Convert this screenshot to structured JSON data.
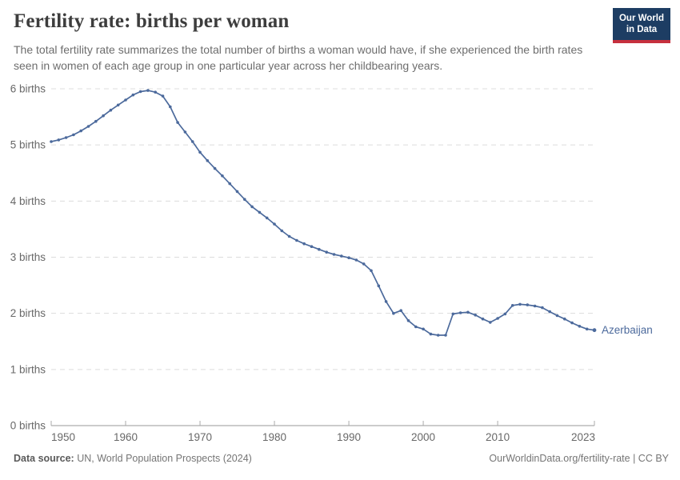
{
  "header": {
    "title": "Fertility rate: births per woman",
    "subtitle": "The total fertility rate summarizes the total number of births a woman would have, if she experienced the birth rates seen in women of each age group in one particular year across her childbearing years.",
    "logo": {
      "line1": "Our World",
      "line2": "in Data",
      "bg_color": "#1d3d63",
      "accent_color": "#c6303e"
    }
  },
  "footer": {
    "datasource_label": "Data source:",
    "datasource_text": " UN, World Population Prospects (2024)",
    "attribution": "OurWorldinData.org/fertility-rate | CC BY"
  },
  "chart_data": {
    "type": "line",
    "title": "Fertility rate: births per woman",
    "xlabel": "",
    "ylabel": "",
    "ylim": [
      0,
      6
    ],
    "xlim": [
      1950,
      2023
    ],
    "grid": "horizontal-dashed",
    "legend_position": "end-of-line-label",
    "axis_unit": "births",
    "y_ticks": [
      {
        "value": 0,
        "label": "0 births"
      },
      {
        "value": 1,
        "label": "1 births"
      },
      {
        "value": 2,
        "label": "2 births"
      },
      {
        "value": 3,
        "label": "3 births"
      },
      {
        "value": 4,
        "label": "4 births"
      },
      {
        "value": 5,
        "label": "5 births"
      },
      {
        "value": 6,
        "label": "6 births"
      }
    ],
    "x_ticks": [
      1950,
      1960,
      1970,
      1980,
      1990,
      2000,
      2010,
      2023
    ],
    "series": [
      {
        "name": "Azerbaijan",
        "color": "#4C6A9C",
        "x": [
          1950,
          1951,
          1952,
          1953,
          1954,
          1955,
          1956,
          1957,
          1958,
          1959,
          1960,
          1961,
          1962,
          1963,
          1964,
          1965,
          1966,
          1967,
          1968,
          1969,
          1970,
          1971,
          1972,
          1973,
          1974,
          1975,
          1976,
          1977,
          1978,
          1979,
          1980,
          1981,
          1982,
          1983,
          1984,
          1985,
          1986,
          1987,
          1988,
          1989,
          1990,
          1991,
          1992,
          1993,
          1994,
          1995,
          1996,
          1997,
          1998,
          1999,
          2000,
          2001,
          2002,
          2003,
          2004,
          2005,
          2006,
          2007,
          2008,
          2009,
          2010,
          2011,
          2012,
          2013,
          2014,
          2015,
          2016,
          2017,
          2018,
          2019,
          2020,
          2021,
          2022,
          2023
        ],
        "values": [
          5.06,
          5.09,
          5.13,
          5.18,
          5.25,
          5.33,
          5.42,
          5.52,
          5.62,
          5.71,
          5.8,
          5.89,
          5.95,
          5.97,
          5.94,
          5.87,
          5.68,
          5.4,
          5.23,
          5.06,
          4.87,
          4.72,
          4.58,
          4.45,
          4.31,
          4.17,
          4.03,
          3.9,
          3.8,
          3.7,
          3.59,
          3.47,
          3.37,
          3.3,
          3.24,
          3.19,
          3.14,
          3.09,
          3.05,
          3.02,
          2.99,
          2.95,
          2.88,
          2.76,
          2.49,
          2.21,
          2.0,
          2.05,
          1.87,
          1.76,
          1.72,
          1.63,
          1.61,
          1.61,
          1.99,
          2.01,
          2.02,
          1.97,
          1.9,
          1.84,
          1.91,
          1.99,
          2.14,
          2.16,
          2.15,
          2.13,
          2.1,
          2.03,
          1.96,
          1.9,
          1.83,
          1.77,
          1.72,
          1.7
        ]
      }
    ],
    "colors": {
      "gridline": "#dcdcdc",
      "axis": "#9a9a9a",
      "tick": "#ababab",
      "tick_label": "#686868"
    }
  }
}
